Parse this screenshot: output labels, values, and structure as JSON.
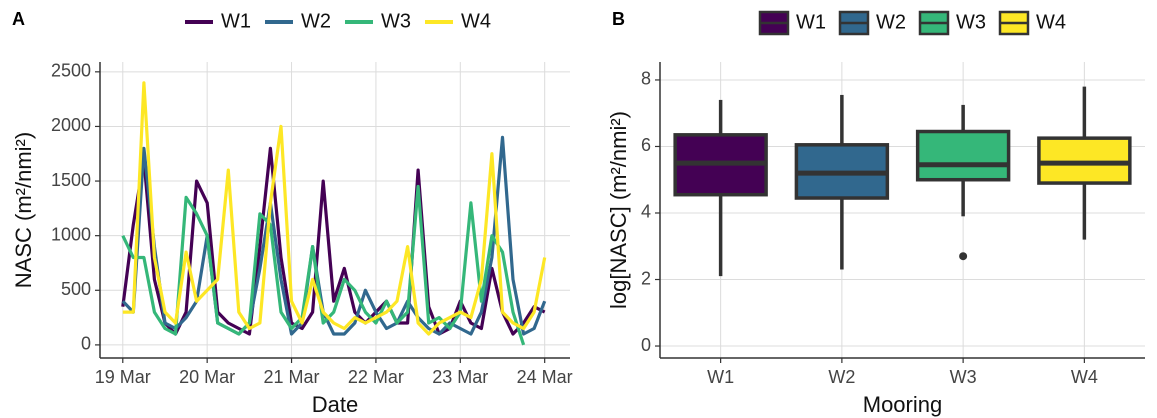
{
  "chart_data": [
    {
      "type": "line",
      "label": "A",
      "x_label": "Date",
      "y_label": "NASC (m²/nmi²)",
      "x": [
        19,
        19.125,
        19.25,
        19.375,
        19.5,
        19.625,
        19.75,
        19.875,
        20,
        20.125,
        20.25,
        20.375,
        20.5,
        20.625,
        20.75,
        20.875,
        21,
        21.125,
        21.25,
        21.375,
        21.5,
        21.625,
        21.75,
        21.875,
        22,
        22.125,
        22.25,
        22.375,
        22.5,
        22.625,
        22.75,
        22.875,
        23,
        23.125,
        23.25,
        23.375,
        23.5,
        23.625,
        23.75,
        23.875,
        24
      ],
      "series": [
        {
          "name": "W1",
          "color": "#440154",
          "values": [
            350,
            1100,
            1700,
            600,
            200,
            100,
            300,
            1500,
            1300,
            300,
            200,
            150,
            100,
            900,
            1800,
            800,
            200,
            150,
            300,
            1500,
            400,
            700,
            300,
            200,
            300,
            400,
            200,
            200,
            1600,
            350,
            100,
            150,
            400,
            200,
            150,
            700,
            300,
            100,
            200,
            350,
            300
          ]
        },
        {
          "name": "W2",
          "color": "#31688e",
          "values": [
            400,
            300,
            1800,
            900,
            200,
            150,
            250,
            400,
            1000,
            200,
            150,
            100,
            200,
            700,
            1300,
            600,
            100,
            200,
            900,
            300,
            100,
            100,
            200,
            500,
            300,
            150,
            200,
            400,
            250,
            150,
            100,
            200,
            150,
            100,
            300,
            800,
            1900,
            600,
            100,
            150,
            400
          ]
        },
        {
          "name": "W3",
          "color": "#35b779",
          "values": [
            1000,
            800,
            800,
            300,
            150,
            100,
            1350,
            1200,
            1000,
            200,
            150,
            100,
            200,
            1200,
            1100,
            300,
            150,
            250,
            900,
            200,
            300,
            600,
            500,
            300,
            200,
            400,
            200,
            300,
            1450,
            200,
            250,
            150,
            300,
            1300,
            400,
            1000,
            850,
            300,
            0,
            null,
            null
          ]
        },
        {
          "name": "W4",
          "color": "#fde725",
          "values": [
            300,
            300,
            2400,
            800,
            300,
            200,
            850,
            400,
            500,
            600,
            1600,
            300,
            150,
            200,
            1300,
            2000,
            400,
            200,
            600,
            300,
            200,
            150,
            250,
            200,
            250,
            300,
            400,
            900,
            200,
            100,
            200,
            250,
            300,
            250,
            600,
            1750,
            300,
            200,
            150,
            300,
            800
          ]
        }
      ],
      "xlim": [
        18.73,
        24.3
      ],
      "xticks": [
        {
          "value": 19,
          "label": "19 Mar"
        },
        {
          "value": 20,
          "label": "20 Mar"
        },
        {
          "value": 21,
          "label": "21 Mar"
        },
        {
          "value": 22,
          "label": "22 Mar"
        },
        {
          "value": 23,
          "label": "23 Mar"
        },
        {
          "value": 24,
          "label": "24 Mar"
        }
      ],
      "ylim": [
        -120,
        2590
      ],
      "yticks": [
        0,
        500,
        1000,
        1500,
        2000,
        2500
      ],
      "grid": true
    },
    {
      "type": "box",
      "label": "B",
      "x_label": "Mooring",
      "y_label": "log[NASC] (m²/nmi²)",
      "categories": [
        "W1",
        "W2",
        "W3",
        "W4"
      ],
      "series": [
        {
          "name": "W1",
          "color": "#440154",
          "min": 2.1,
          "q1": 4.55,
          "median": 5.5,
          "q3": 6.35,
          "max": 7.4,
          "outliers": []
        },
        {
          "name": "W2",
          "color": "#31688e",
          "min": 2.3,
          "q1": 4.45,
          "median": 5.2,
          "q3": 6.05,
          "max": 7.55,
          "outliers": []
        },
        {
          "name": "W3",
          "color": "#35b779",
          "min": 3.9,
          "q1": 5.0,
          "median": 5.45,
          "q3": 6.45,
          "max": 7.25,
          "outliers": [
            2.7
          ]
        },
        {
          "name": "W4",
          "color": "#fde725",
          "min": 3.2,
          "q1": 4.9,
          "median": 5.5,
          "q3": 6.25,
          "max": 7.8,
          "outliers": []
        }
      ],
      "ylim": [
        -0.36,
        8.54
      ],
      "yticks": [
        0,
        2,
        4,
        6,
        8
      ],
      "grid": true
    }
  ]
}
